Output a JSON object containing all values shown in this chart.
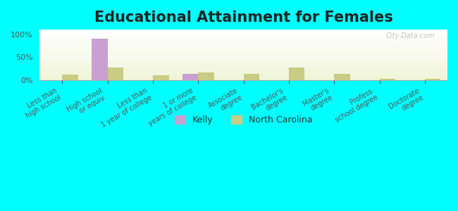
{
  "title": "Educational Attainment for Females",
  "categories": [
    "Less than\nhigh school",
    "High school\nor equiv.",
    "Less than\n1 year of college",
    "1 or more\nyears of college",
    "Associate\ndegree",
    "Bachelor's\ndegree",
    "Master's\ndegree",
    "Profess.\nschool degree",
    "Doctorate\ndegree"
  ],
  "kelly_values": [
    0,
    90.0,
    0,
    13.0,
    0,
    0,
    0,
    0,
    0
  ],
  "nc_values": [
    12.0,
    27.0,
    10.0,
    17.0,
    14.0,
    27.0,
    13.0,
    3.0,
    3.0
  ],
  "kelly_color": "#c8a0d2",
  "nc_color": "#c8cc84",
  "background_top": "#f0f5d8",
  "background_bottom": "#ffffff",
  "outer_bg": "#00ffff",
  "title_fontsize": 15,
  "tick_fontsize": 7,
  "yticks": [
    0,
    50,
    100
  ],
  "ylim": [
    0,
    110
  ],
  "bar_width": 0.35,
  "watermark": "City-Data.com"
}
